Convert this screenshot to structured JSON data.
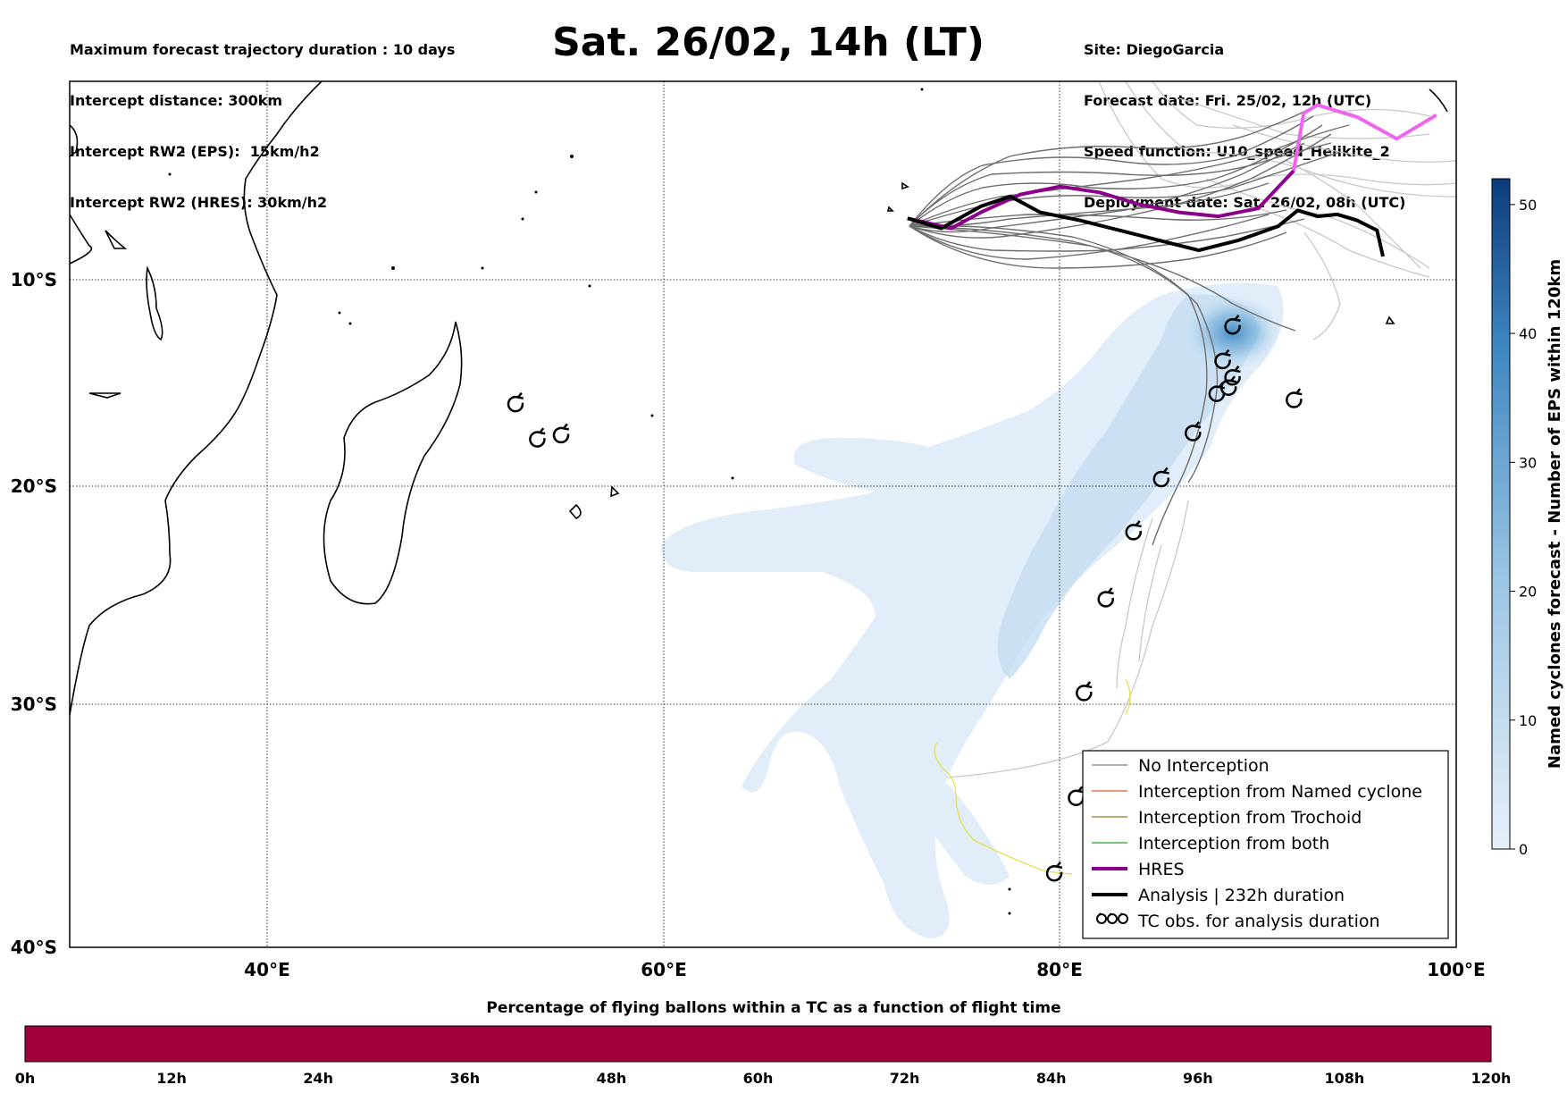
{
  "header": {
    "left_lines": [
      "Maximum forecast trajectory duration : 10 days",
      "Intercept distance: 300km",
      "Intercept RW2 (EPS):  15km/h2",
      "Intercept RW2 (HRES): 30km/h2"
    ],
    "title": "Sat. 26/02, 14h (LT)",
    "right_lines": [
      "Site: DiegoGarcia",
      "Forecast date: Fri. 25/02, 12h (UTC)",
      "Speed function: U10_speed_Helikite_2",
      "Deployment date: Sat. 26/02, 08h (UTC)"
    ]
  },
  "map": {
    "lon_range": [
      30,
      100
    ],
    "lat_range": [
      -40,
      0
    ],
    "lon_ticks": [
      {
        "value": 40,
        "label": "40°E"
      },
      {
        "value": 60,
        "label": "60°E"
      },
      {
        "value": 80,
        "label": "80°E"
      },
      {
        "value": 100,
        "label": "100°E"
      }
    ],
    "lat_ticks": [
      {
        "value": -10,
        "label": "10°S"
      },
      {
        "value": -20,
        "label": "20°S"
      },
      {
        "value": -30,
        "label": "30°S"
      },
      {
        "value": -40,
        "label": "40°S"
      }
    ],
    "tc_obs_left": [
      [
        52.5,
        -16.1
      ],
      [
        53.6,
        -17.8
      ],
      [
        54.8,
        -17.6
      ]
    ],
    "tc_obs_track": [
      [
        88.7,
        -12.3
      ],
      [
        88.2,
        -14.0
      ],
      [
        88.7,
        -14.8
      ],
      [
        88.5,
        -15.3
      ],
      [
        87.9,
        -15.6
      ],
      [
        91.8,
        -15.9
      ],
      [
        86.7,
        -17.5
      ],
      [
        85.1,
        -19.7
      ],
      [
        83.7,
        -22.2
      ],
      [
        82.3,
        -25.3
      ],
      [
        81.2,
        -29.5
      ],
      [
        80.8,
        -34.0
      ],
      [
        79.7,
        -37.1
      ]
    ],
    "hres_track": [
      [
        72.3,
        -6.9
      ],
      [
        74.5,
        -7.4
      ],
      [
        76,
        -6.6
      ],
      [
        78,
        -5.7
      ],
      [
        80,
        -5.3
      ],
      [
        82,
        -5.6
      ],
      [
        84,
        -6.2
      ],
      [
        86,
        -6.6
      ],
      [
        88,
        -6.8
      ],
      [
        90,
        -6.4
      ],
      [
        91.8,
        -4.5
      ],
      [
        92.3,
        -1.6
      ],
      [
        93,
        -1.2
      ],
      [
        95,
        -1.8
      ],
      [
        97,
        -2.9
      ],
      [
        99,
        -1.7
      ]
    ],
    "analysis_track": [
      [
        72.3,
        -6.9
      ],
      [
        74,
        -7.4
      ],
      [
        76,
        -6.3
      ],
      [
        77.5,
        -5.8
      ],
      [
        79,
        -6.6
      ],
      [
        81,
        -7.0
      ],
      [
        83,
        -7.5
      ],
      [
        85,
        -8.0
      ],
      [
        87,
        -8.5
      ],
      [
        89,
        -8.0
      ],
      [
        91,
        -7.3
      ],
      [
        92,
        -6.5
      ],
      [
        93,
        -6.8
      ],
      [
        94,
        -6.7
      ],
      [
        95,
        -7.0
      ],
      [
        96,
        -7.5
      ],
      [
        96.3,
        -8.8
      ]
    ]
  },
  "legend": {
    "items": [
      {
        "label": "No Interception",
        "color": "#808080",
        "width": 1
      },
      {
        "label": "Interception from Named cyclone",
        "color": "#e8582a",
        "width": 1
      },
      {
        "label": "Interception from Trochoid",
        "color": "#8a7a1a",
        "width": 1
      },
      {
        "label": "Interception from both",
        "color": "#2ca02c",
        "width": 1
      },
      {
        "label": "HRES",
        "color": "#8b008b",
        "width": 4
      },
      {
        "label": "Analysis | 232h duration",
        "color": "#000000",
        "width": 4
      },
      {
        "label": "TC obs. for analysis duration",
        "color": "#000000",
        "width": 0,
        "icon": "cyclone-icon"
      }
    ]
  },
  "colorbar_right": {
    "label": "Named cyclones forecast - Number of EPS within 120km",
    "range": [
      0,
      52
    ],
    "ticks": [
      0,
      10,
      20,
      30,
      40,
      50
    ]
  },
  "colorbar_bottom": {
    "title": "Percentage of flying ballons within a TC as a function of flight time",
    "ticks": [
      "0h",
      "12h",
      "24h",
      "36h",
      "48h",
      "60h",
      "72h",
      "84h",
      "96h",
      "108h",
      "120h"
    ],
    "fill_color": "#a0003c"
  }
}
